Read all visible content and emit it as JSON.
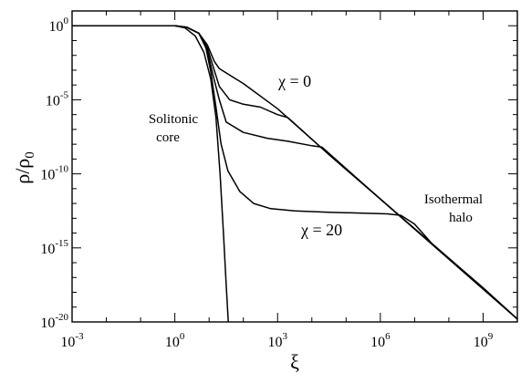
{
  "chart_data": {
    "type": "line",
    "title": "",
    "xlabel": "ξ",
    "ylabel_main": "ρ/ρ",
    "ylabel_sub": "0",
    "xscale": "log",
    "yscale": "log",
    "xlim_exp": [
      -3,
      10
    ],
    "ylim_exp": [
      -20,
      1
    ],
    "x_ticks": [
      {
        "base": "10",
        "exp": "-3",
        "value_exp": -3
      },
      {
        "base": "10",
        "exp": "0",
        "value_exp": 0
      },
      {
        "base": "10",
        "exp": "3",
        "value_exp": 3
      },
      {
        "base": "10",
        "exp": "6",
        "value_exp": 6
      },
      {
        "base": "10",
        "exp": "9",
        "value_exp": 9
      }
    ],
    "y_ticks": [
      {
        "base": "10",
        "exp": "0",
        "value_exp": 0
      },
      {
        "base": "10",
        "exp": "-5",
        "value_exp": -5
      },
      {
        "base": "10",
        "exp": "-10",
        "value_exp": -10
      },
      {
        "base": "10",
        "exp": "-15",
        "value_exp": -15
      },
      {
        "base": "10",
        "exp": "-20",
        "value_exp": -20
      }
    ],
    "annotations": {
      "core_line1": "Solitonic",
      "core_line2": "core",
      "halo_line1": "Isothermal",
      "halo_line2": "halo",
      "chi0": "χ = 0",
      "chi20": "χ = 20"
    },
    "series_note": "points are [log10 ξ, log10 ρ/ρ0]",
    "series": [
      {
        "points": [
          [
            -3,
            0
          ],
          [
            0,
            0
          ],
          [
            0.3,
            -0.15
          ],
          [
            0.6,
            -0.7
          ],
          [
            0.85,
            -1.8
          ],
          [
            1.05,
            -3.6
          ],
          [
            1.2,
            -6.2
          ],
          [
            1.32,
            -10
          ],
          [
            1.42,
            -14
          ],
          [
            1.5,
            -17.5
          ],
          [
            1.56,
            -20
          ]
        ]
      },
      {
        "points": [
          [
            -3,
            0
          ],
          [
            0,
            0
          ],
          [
            0.35,
            -0.1
          ],
          [
            0.7,
            -0.5
          ],
          [
            0.95,
            -1.3
          ],
          [
            1.15,
            -2.4
          ],
          [
            1.3,
            -2.9
          ],
          [
            2,
            -3.9
          ],
          [
            3,
            -5.6
          ],
          [
            4.5,
            -8.7
          ],
          [
            6,
            -11.7
          ],
          [
            7.5,
            -14.7
          ],
          [
            9,
            -17.7
          ],
          [
            10,
            -19.8
          ]
        ]
      },
      {
        "points": [
          [
            -3,
            0
          ],
          [
            0,
            0
          ],
          [
            0.35,
            -0.1
          ],
          [
            0.7,
            -0.5
          ],
          [
            0.95,
            -1.5
          ],
          [
            1.15,
            -3
          ],
          [
            1.3,
            -4.1
          ],
          [
            1.6,
            -5
          ],
          [
            2,
            -5.3
          ],
          [
            2.5,
            -5.5
          ],
          [
            3,
            -6
          ],
          [
            3.3,
            -6.2
          ],
          [
            4.5,
            -8.7
          ],
          [
            6,
            -11.7
          ],
          [
            10,
            -19.8
          ]
        ]
      },
      {
        "points": [
          [
            -3,
            0
          ],
          [
            0,
            0
          ],
          [
            0.35,
            -0.1
          ],
          [
            0.7,
            -0.5
          ],
          [
            0.95,
            -1.7
          ],
          [
            1.12,
            -3.4
          ],
          [
            1.3,
            -5
          ],
          [
            1.5,
            -6.5
          ],
          [
            2,
            -7.2
          ],
          [
            2.7,
            -7.6
          ],
          [
            3.3,
            -7.8
          ],
          [
            4,
            -8.1
          ],
          [
            4.3,
            -8.2
          ],
          [
            6,
            -11.7
          ],
          [
            10,
            -19.8
          ]
        ]
      },
      {
        "points": [
          [
            -3,
            0
          ],
          [
            0,
            0
          ],
          [
            0.35,
            -0.1
          ],
          [
            0.7,
            -0.5
          ],
          [
            0.9,
            -1.4
          ],
          [
            1.05,
            -3.1
          ],
          [
            1.2,
            -5.5
          ],
          [
            1.35,
            -8
          ],
          [
            1.55,
            -9.8
          ],
          [
            1.9,
            -11.2
          ],
          [
            2.3,
            -12
          ],
          [
            2.8,
            -12.35
          ],
          [
            3.5,
            -12.5
          ],
          [
            4.5,
            -12.6
          ],
          [
            5.5,
            -12.65
          ],
          [
            6.2,
            -12.7
          ],
          [
            6.6,
            -12.8
          ],
          [
            7,
            -13.4
          ],
          [
            7.5,
            -14.7
          ],
          [
            9,
            -17.7
          ],
          [
            10,
            -19.8
          ]
        ]
      }
    ]
  }
}
